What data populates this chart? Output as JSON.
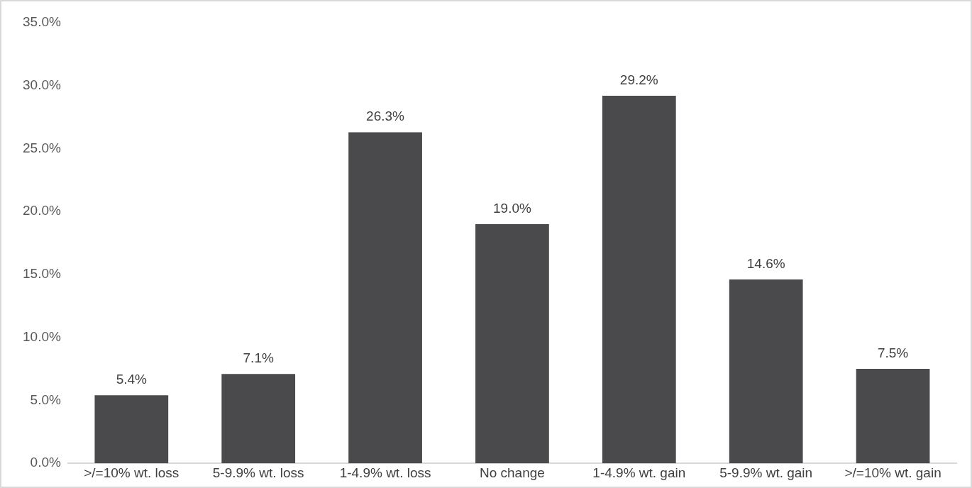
{
  "chart_data": {
    "type": "bar",
    "categories": [
      ">/=10% wt. loss",
      "5-9.9% wt. loss",
      "1-4.9% wt. loss",
      "No change",
      "1-4.9% wt. gain",
      "5-9.9% wt. gain",
      ">/=10% wt. gain"
    ],
    "values": [
      5.4,
      7.1,
      26.3,
      19.0,
      29.2,
      14.6,
      7.5
    ],
    "value_labels": [
      "5.4%",
      "7.1%",
      "26.3%",
      "19.0%",
      "29.2%",
      "14.6%",
      "7.5%"
    ],
    "color": "#4a4a4c",
    "ylim": [
      0,
      35
    ],
    "yticks": [
      {
        "value": 0,
        "label": "0.0%"
      },
      {
        "value": 5,
        "label": "5.0%"
      },
      {
        "value": 10,
        "label": "10.0%"
      },
      {
        "value": 15,
        "label": "15.0%"
      },
      {
        "value": 20,
        "label": "20.0%"
      },
      {
        "value": 25,
        "label": "25.0%"
      },
      {
        "value": 30,
        "label": "30.0%"
      },
      {
        "value": 35,
        "label": "35.0%"
      }
    ],
    "grid": false,
    "legend": false
  }
}
